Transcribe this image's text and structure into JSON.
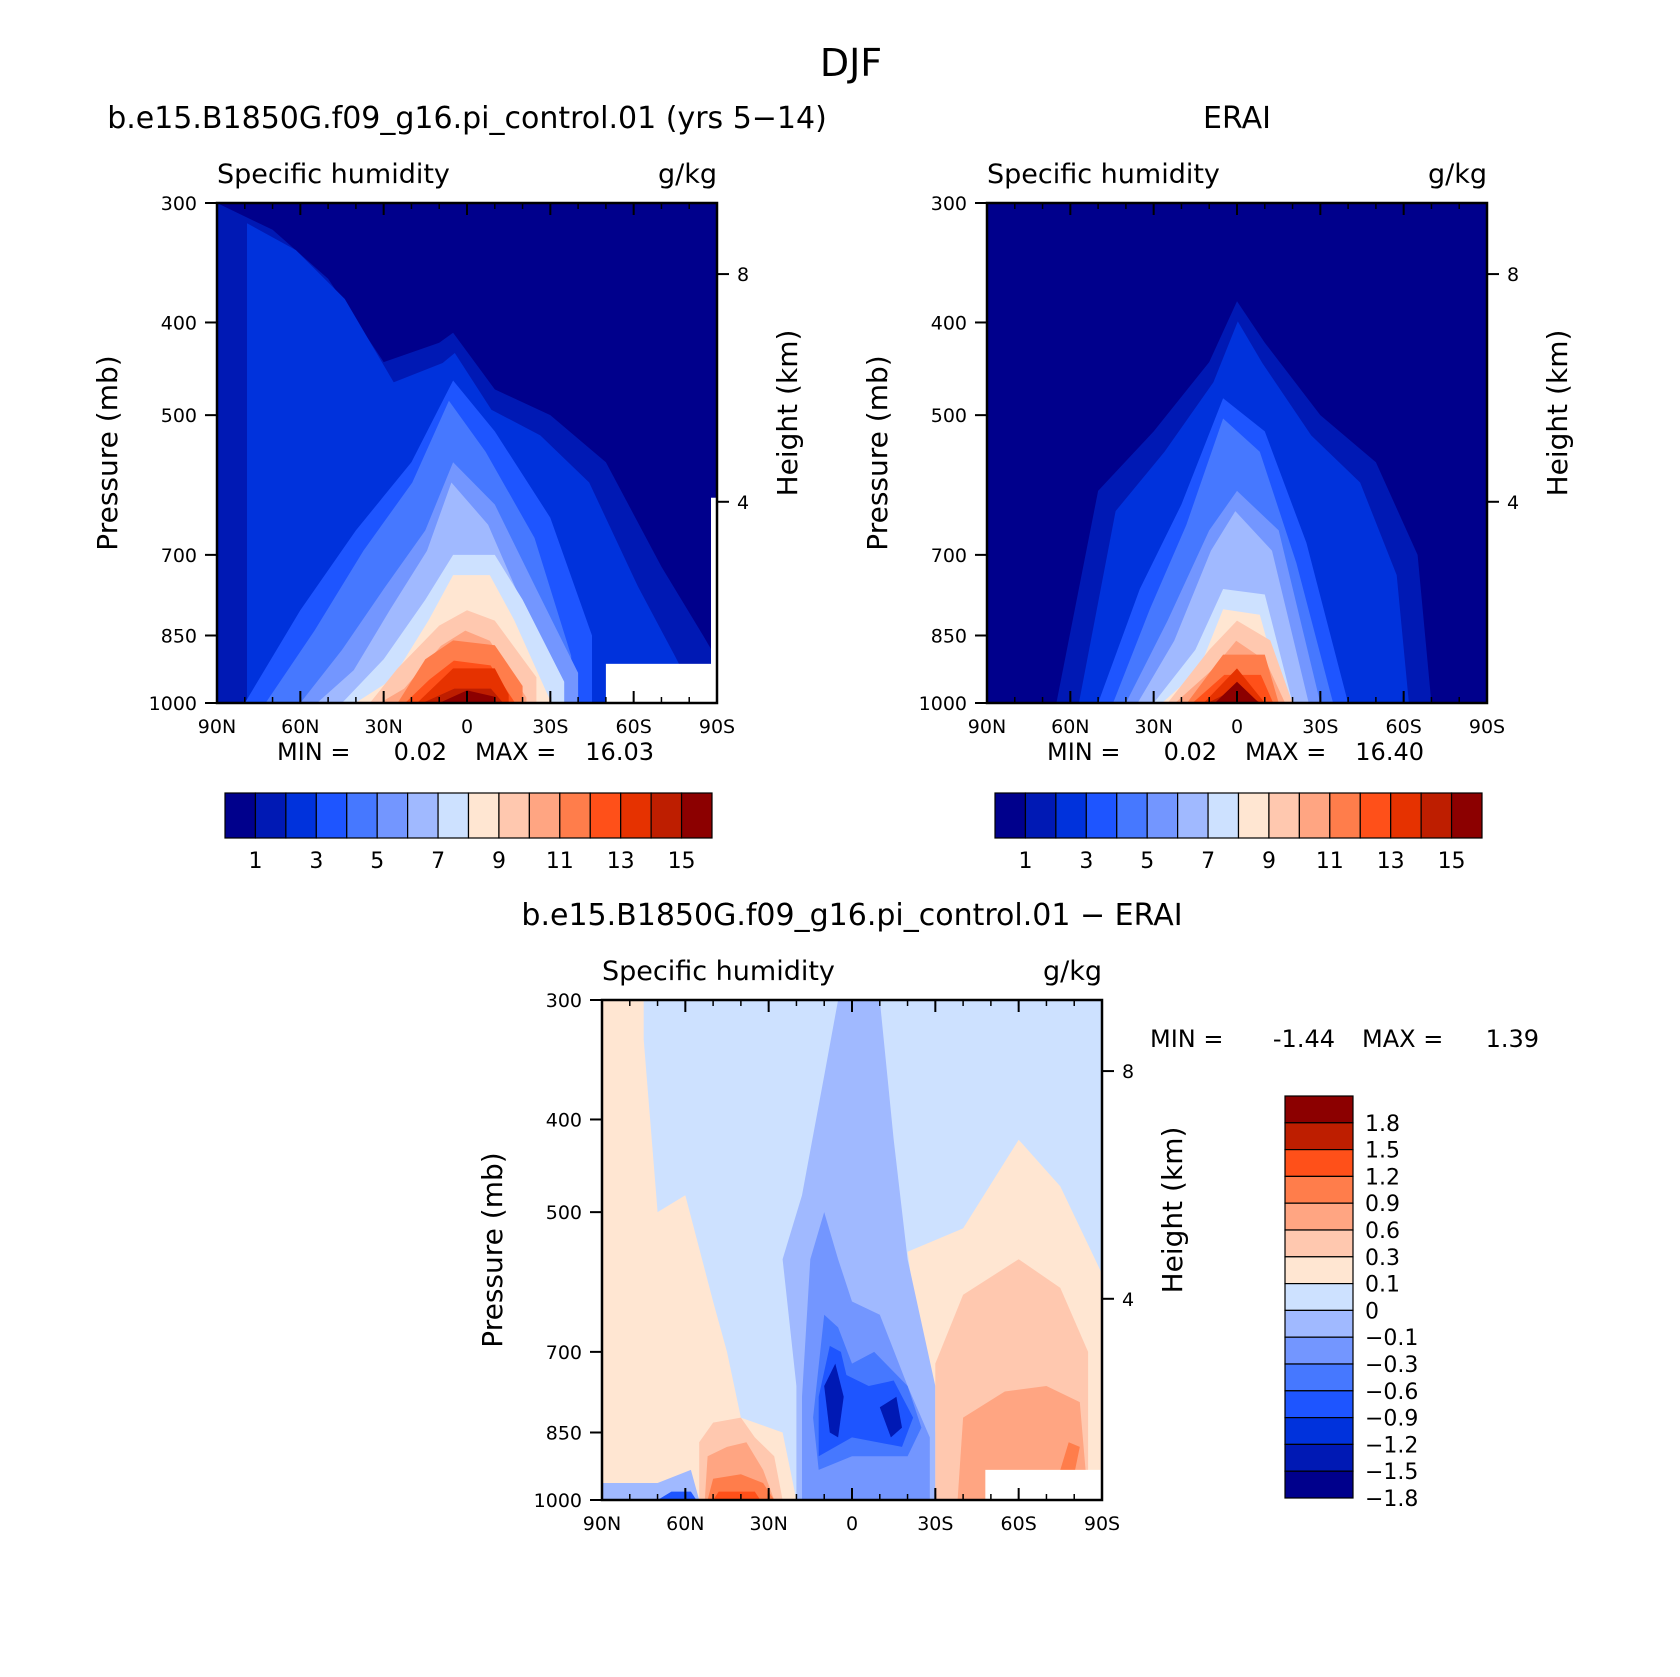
{
  "figure": {
    "title": "DJF"
  },
  "colors": {
    "q_levels": [
      "#00008c",
      "#0019b4",
      "#0032dc",
      "#1e55ff",
      "#4678ff",
      "#7396ff",
      "#a0b9ff",
      "#cde1ff",
      "#ffe6d2",
      "#ffc8af",
      "#ffa582",
      "#ff7d4b",
      "#ff5019",
      "#e63200",
      "#be1e00",
      "#8c0000"
    ],
    "diff_levels": [
      "#00008c",
      "#0019b4",
      "#0032dc",
      "#1e55ff",
      "#4678ff",
      "#7396ff",
      "#a0b9ff",
      "#cde1ff",
      "#ffe6d2",
      "#ffc8af",
      "#ffa582",
      "#ff7d4b",
      "#ff5019",
      "#be1e00",
      "#8c0000"
    ]
  },
  "chart_data": [
    {
      "type": "heatmap",
      "title": "b.e15.B1850G.f09_g16.pi_control.01 (yrs 5-14)",
      "left_label": "Specific humidity",
      "right_label": "g/kg",
      "ylabel": "Pressure (mb)",
      "ylabel_right": "Height (km)",
      "x_ticks": [
        "90N",
        "60N",
        "30N",
        "0",
        "30S",
        "60S",
        "90S"
      ],
      "y_ticks": [
        "300",
        "400",
        "500",
        "700",
        "850",
        "1000"
      ],
      "y_right_ticks": [
        "8",
        "4"
      ],
      "xlim": [
        90,
        -90
      ],
      "ylim": [
        1000,
        300
      ],
      "y_scale": "log",
      "min_label": "MIN =",
      "min_value": "0.02",
      "max_label": "MAX =",
      "max_value": "16.03",
      "colorbar_labels": [
        "1",
        "3",
        "5",
        "7",
        "9",
        "11",
        "13",
        "15"
      ],
      "missing_region": "surface, 50S-90S below ~900 mb",
      "levels_series": [
        {
          "level": 1,
          "x": [
            90,
            70,
            50,
            30,
            10,
            5,
            -10,
            -30,
            -50,
            -70,
            -85,
            -90
          ],
          "y": [
            300,
            320,
            360,
            440,
            420,
            410,
            470,
            500,
            560,
            720,
            850,
            900
          ]
        },
        {
          "level": 3,
          "x": [
            80,
            60,
            40,
            20,
            5,
            -10,
            -30,
            -45
          ],
          "y": [
            1000,
            800,
            660,
            560,
            460,
            520,
            640,
            850
          ]
        },
        {
          "level": 5,
          "x": [
            60,
            45,
            30,
            15,
            5,
            -10,
            -25,
            -40
          ],
          "y": [
            1000,
            880,
            760,
            660,
            560,
            620,
            760,
            930
          ]
        },
        {
          "level": 7,
          "x": [
            45,
            30,
            15,
            5,
            -10,
            -20,
            -35
          ],
          "y": [
            1000,
            900,
            780,
            700,
            700,
            780,
            950
          ]
        },
        {
          "level": 9,
          "x": [
            35,
            25,
            10,
            0,
            -10,
            -25
          ],
          "y": [
            1000,
            920,
            830,
            800,
            820,
            940
          ]
        },
        {
          "level": 11,
          "x": [
            25,
            15,
            5,
            -10,
            -20
          ],
          "y": [
            1000,
            900,
            860,
            870,
            960
          ]
        },
        {
          "level": 13,
          "x": [
            18,
            5,
            -10,
            -15
          ],
          "y": [
            1000,
            920,
            920,
            980
          ]
        },
        {
          "level": 15,
          "x": [
            10,
            0,
            -10
          ],
          "y": [
            1000,
            970,
            985
          ]
        }
      ]
    },
    {
      "type": "heatmap",
      "title": "ERAI",
      "left_label": "Specific humidity",
      "right_label": "g/kg",
      "ylabel": "Pressure (mb)",
      "ylabel_right": "Height (km)",
      "x_ticks": [
        "90N",
        "60N",
        "30N",
        "0",
        "30S",
        "60S",
        "90S"
      ],
      "y_ticks": [
        "300",
        "400",
        "500",
        "700",
        "850",
        "1000"
      ],
      "y_right_ticks": [
        "8",
        "4"
      ],
      "xlim": [
        90,
        -90
      ],
      "ylim": [
        1000,
        300
      ],
      "y_scale": "log",
      "min_label": "MIN =",
      "min_value": "0.02",
      "max_label": "MAX =",
      "max_value": "16.40",
      "colorbar_labels": [
        "1",
        "3",
        "5",
        "7",
        "9",
        "11",
        "13",
        "15"
      ],
      "levels_series": [
        {
          "level": 1,
          "x": [
            65,
            50,
            30,
            10,
            0,
            -10,
            -30,
            -50,
            -65,
            -70
          ],
          "y": [
            1000,
            600,
            520,
            440,
            380,
            420,
            500,
            560,
            700,
            1000
          ]
        },
        {
          "level": 3,
          "x": [
            50,
            35,
            20,
            5,
            -10,
            -25,
            -40
          ],
          "y": [
            1000,
            760,
            620,
            480,
            520,
            680,
            1000
          ]
        },
        {
          "level": 5,
          "x": [
            40,
            25,
            10,
            0,
            -15,
            -30
          ],
          "y": [
            1000,
            820,
            660,
            600,
            660,
            1000
          ]
        },
        {
          "level": 7,
          "x": [
            30,
            15,
            5,
            -10,
            -20
          ],
          "y": [
            1000,
            880,
            760,
            770,
            1000
          ]
        },
        {
          "level": 9,
          "x": [
            25,
            10,
            0,
            -12,
            -20
          ],
          "y": [
            1000,
            880,
            820,
            860,
            1000
          ]
        },
        {
          "level": 11,
          "x": [
            18,
            5,
            -10,
            -15
          ],
          "y": [
            1000,
            890,
            890,
            1000
          ]
        },
        {
          "level": 13,
          "x": [
            12,
            0,
            -10
          ],
          "y": [
            1000,
            920,
            1000
          ]
        },
        {
          "level": 15,
          "x": [
            8,
            0,
            -8
          ],
          "y": [
            1000,
            950,
            1000
          ]
        }
      ]
    },
    {
      "type": "heatmap",
      "title": "b.e15.B1850G.f09_g16.pi_control.01 - ERAI",
      "left_label": "Specific humidity",
      "right_label": "g/kg",
      "ylabel": "Pressure (mb)",
      "ylabel_right": "Height (km)",
      "x_ticks": [
        "90N",
        "60N",
        "30N",
        "0",
        "30S",
        "60S",
        "90S"
      ],
      "y_ticks": [
        "300",
        "400",
        "500",
        "700",
        "850",
        "1000"
      ],
      "y_right_ticks": [
        "8",
        "4"
      ],
      "xlim": [
        90,
        -90
      ],
      "ylim": [
        1000,
        300
      ],
      "y_scale": "log",
      "min_label": "MIN =",
      "min_value": "-1.44",
      "max_label": "MAX =",
      "max_value": "1.39",
      "colorbar_labels": [
        "1.8",
        "1.5",
        "1.2",
        "0.9",
        "0.6",
        "0.3",
        "0.1",
        "0",
        "−0.1",
        "−0.3",
        "−0.6",
        "−0.9",
        "−1.2",
        "−1.5",
        "−1.8"
      ],
      "features": [
        {
          "value_range": "0 to 0.1",
          "region": "90N-35N, 300-1000 mb"
        },
        {
          "value_range": "-0.1 to 0",
          "region": "35N-35S upper troposphere"
        },
        {
          "value_range": "-0.6 to -1.5",
          "region": "20N-10S, 600-950 mb"
        },
        {
          "value_range": "0.3 to 0.9",
          "region": "30S-85S, 700-950 mb"
        },
        {
          "value_range": "0.6 to 1.2",
          "region": "50N-20N near surface"
        }
      ]
    }
  ]
}
